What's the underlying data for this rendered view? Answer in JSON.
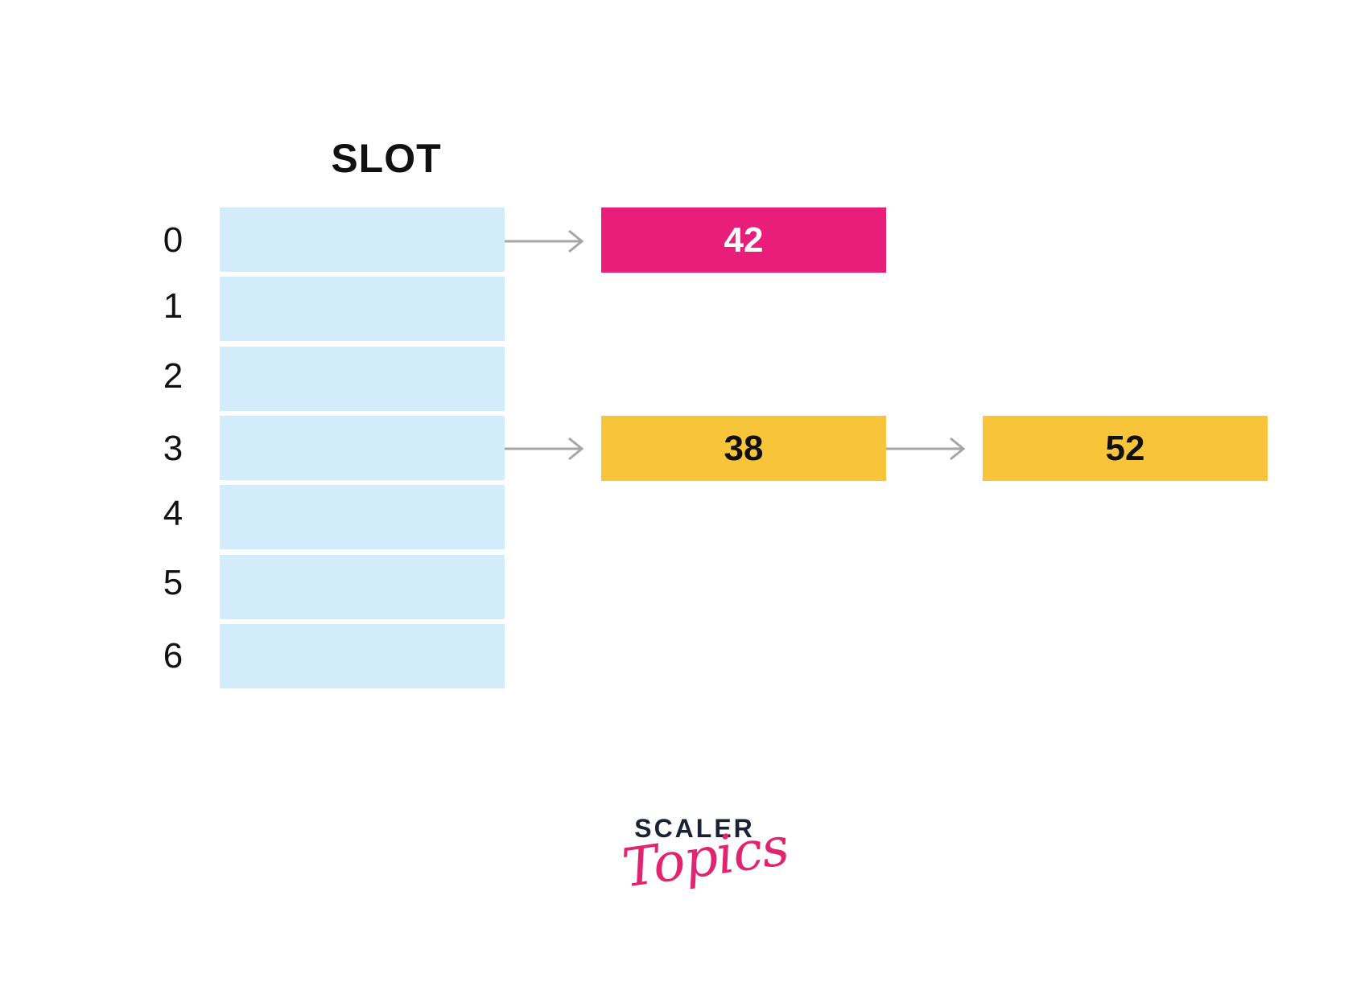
{
  "title": "SLOT",
  "slots": [
    {
      "index": "0"
    },
    {
      "index": "1"
    },
    {
      "index": "2"
    },
    {
      "index": "3"
    },
    {
      "index": "4"
    },
    {
      "index": "5"
    },
    {
      "index": "6"
    }
  ],
  "chains": [
    {
      "slot": "0",
      "nodes": [
        "42"
      ],
      "color": "#e91e7a"
    },
    {
      "slot": "3",
      "nodes": [
        "38",
        "52"
      ],
      "color": "#f7c43a"
    }
  ],
  "colors": {
    "slot_fill": "#d2ecfb",
    "arrow": "#a6a6a6",
    "pink": "#e91e7a",
    "yellow": "#f7c43a"
  },
  "logo": {
    "line1": "SCALER",
    "line2": "Topics"
  }
}
